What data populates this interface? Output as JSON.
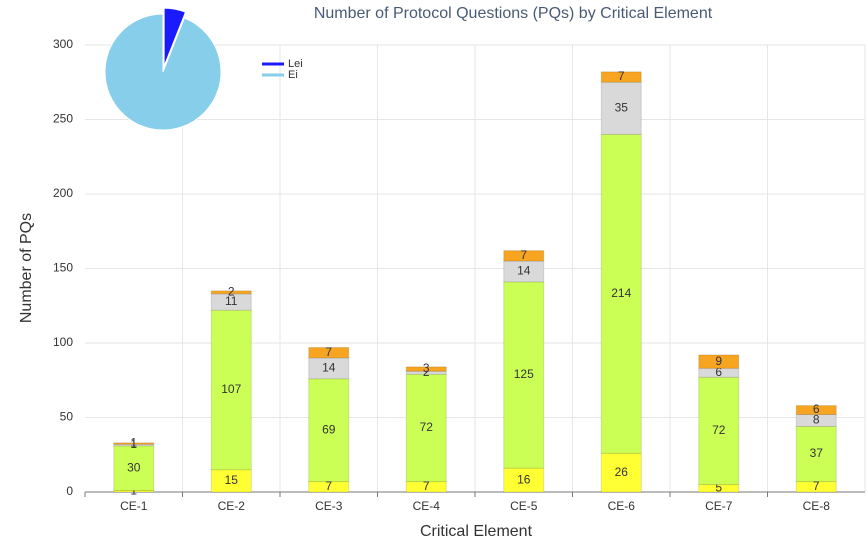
{
  "chart_data": [
    {
      "type": "bar",
      "title": "Number of Protocol Questions (PQs) by Critical Element",
      "x_label": "Critical Element",
      "y_label": "Number of PQs",
      "categories": [
        "CE-1",
        "CE-2",
        "CE-3",
        "CE-4",
        "CE-5",
        "CE-6",
        "CE-7",
        "CE-8"
      ],
      "series": [
        {
          "color": "#ffff33",
          "values": [
            1,
            15,
            7,
            7,
            16,
            26,
            5,
            7
          ]
        },
        {
          "color": "#ccff55",
          "values": [
            30,
            107,
            69,
            72,
            125,
            214,
            72,
            37
          ]
        },
        {
          "color": "#d9d9d9",
          "values": [
            1,
            11,
            14,
            2,
            14,
            35,
            6,
            8
          ]
        },
        {
          "color": "#f7a520",
          "values": [
            1,
            2,
            7,
            3,
            7,
            7,
            9,
            6
          ]
        }
      ],
      "ylim": [
        0,
        300
      ],
      "yticks": [
        0,
        50,
        100,
        150,
        200,
        250,
        300
      ],
      "grid": true
    },
    {
      "type": "pie",
      "categories": [
        "Lei",
        "Ei"
      ],
      "values": [
        6,
        94
      ],
      "colors": [
        "#1a1aff",
        "#87ceeb"
      ],
      "legend": "top-right"
    }
  ]
}
